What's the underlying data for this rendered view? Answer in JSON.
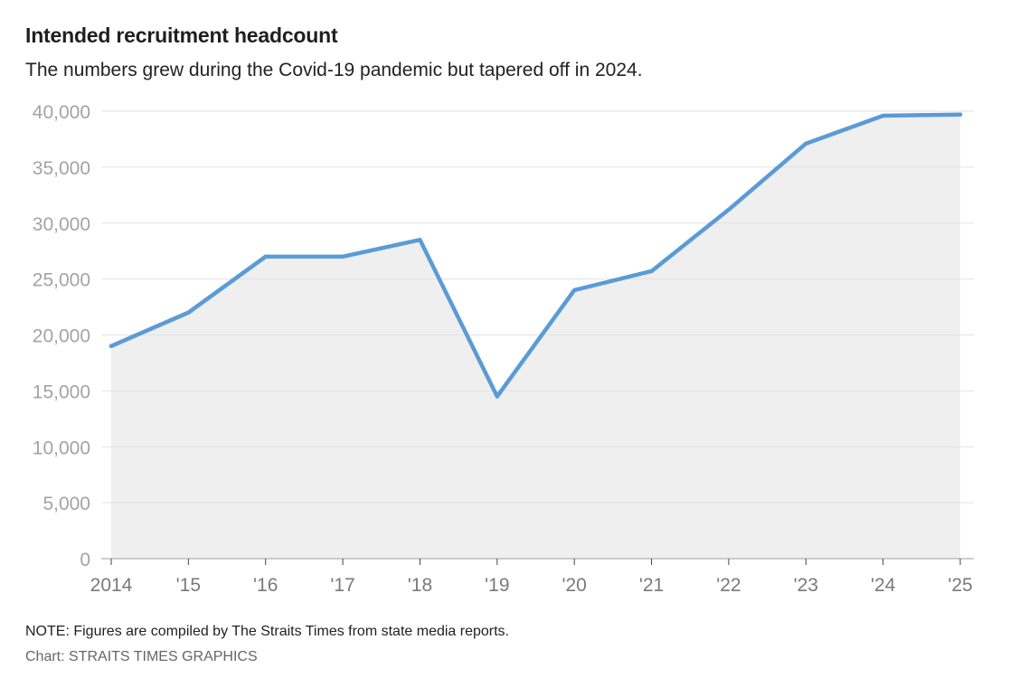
{
  "header": {
    "title": "Intended recruitment headcount",
    "subtitle": "The numbers grew during the Covid-19 pandemic but tapered off in 2024."
  },
  "footer": {
    "note": "NOTE: Figures are compiled by The Straits Times from state media reports.",
    "source": "Chart: STRAITS TIMES GRAPHICS"
  },
  "colors": {
    "line": "#5b9bd5",
    "area": "#efefef",
    "grid": "#e2e2e2",
    "axis": "#bdbdbd"
  },
  "chart_data": {
    "type": "area",
    "title": "Intended recruitment headcount",
    "subtitle": "The numbers grew during the Covid-19 pandemic but tapered off in 2024.",
    "xlabel": "",
    "ylabel": "",
    "x": [
      "2014",
      "'15",
      "'16",
      "'17",
      "'18",
      "'19",
      "'20",
      "'21",
      "'22",
      "'23",
      "'24",
      "'25"
    ],
    "values": [
      19000,
      22000,
      27000,
      27000,
      28500,
      14500,
      24000,
      25700,
      31200,
      37100,
      39600,
      39700
    ],
    "ylim": [
      0,
      40000
    ],
    "yticks": [
      0,
      5000,
      10000,
      15000,
      20000,
      25000,
      30000,
      35000,
      40000
    ],
    "ytick_labels": [
      "0",
      "5,000",
      "10,000",
      "15,000",
      "20,000",
      "25,000",
      "30,000",
      "35,000",
      "40,000"
    ],
    "grid": true,
    "legend": "none"
  }
}
